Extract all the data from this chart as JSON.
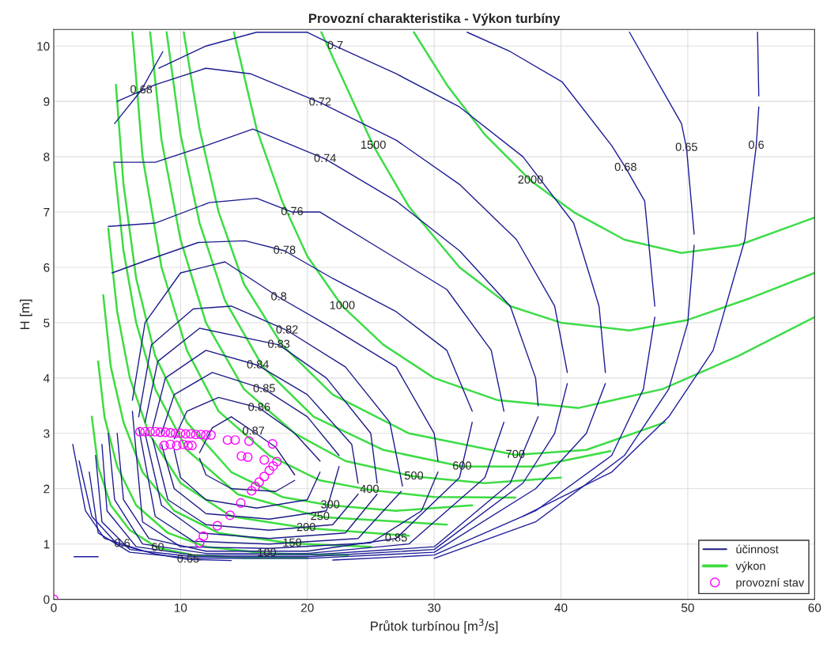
{
  "chart_data": {
    "type": "line",
    "title": "Provozní charakteristika - Výkon turbíny",
    "xlabel": "Průtok turbínou [m$^{3}$/s]",
    "ylabel": "H [m]",
    "xlim": [
      0,
      60
    ],
    "xticks": [
      0,
      10,
      20,
      30,
      40,
      50,
      60
    ],
    "ylim": [
      0,
      10.3
    ],
    "yticks": [
      0,
      1,
      2,
      3,
      4,
      5,
      6,
      7,
      8,
      9,
      10
    ],
    "grid": true,
    "legend": "bottom right",
    "series": [
      {
        "name": "účinnost",
        "color": "#1c1c80",
        "x": [
          11.5,
          12.5,
          14,
          15.75,
          17.5,
          19
        ],
        "values": [
          2.65,
          3.1,
          3.3,
          3.03,
          2.75,
          2.25
        ]
      },
      {
        "color": "#1c1c81",
        "x": [
          11.5,
          12,
          14,
          17.5,
          19
        ],
        "values": [
          2.55,
          2.25,
          2.0,
          1.95,
          2.15
        ]
      },
      {
        "color": "#1c1c82",
        "x": [
          9.5,
          10.5,
          13,
          16.2,
          19,
          21
        ],
        "values": [
          2.9,
          3.4,
          3.65,
          3.46,
          3.0,
          2.5
        ]
      },
      {
        "color": "#1c1c83",
        "x": [
          9.5,
          10,
          12,
          16,
          20,
          21
        ],
        "values": [
          2.7,
          2.2,
          1.8,
          1.65,
          1.8,
          2.3
        ]
      },
      {
        "color": "#1c1c84",
        "x": [
          8.5,
          9.5,
          12.5,
          16.6,
          20,
          22.5
        ],
        "values": [
          3.0,
          3.7,
          4.1,
          3.8,
          3.3,
          2.6
        ]
      },
      {
        "color": "#1c1c85",
        "x": [
          8.5,
          9.5,
          12,
          17,
          21.5,
          22.5
        ],
        "values": [
          2.8,
          2.0,
          1.55,
          1.45,
          1.6,
          2.4
        ]
      },
      {
        "color": "#1c1c86",
        "x": [
          7.8,
          8.8,
          12,
          16.1,
          20,
          23.5,
          24
        ],
        "values": [
          3.1,
          4.0,
          4.5,
          4.23,
          3.7,
          2.8,
          2.1
        ]
      },
      {
        "color": "#1c1c87",
        "x": [
          7.8,
          9,
          12,
          17,
          22,
          24
        ],
        "values": [
          2.9,
          1.8,
          1.35,
          1.25,
          1.35,
          1.9
        ]
      },
      {
        "color": "#1c1c88",
        "x": [
          7.2,
          8.2,
          11.5,
          17.75,
          21.5,
          25,
          25.5
        ],
        "values": [
          3.2,
          4.3,
          4.9,
          4.6,
          4.0,
          3.0,
          2.1
        ]
      },
      {
        "color": "#1c1c89",
        "x": [
          7.2,
          8.5,
          11.5,
          17,
          23,
          25.5
        ],
        "values": [
          3.0,
          1.7,
          1.2,
          1.1,
          1.2,
          1.9
        ]
      },
      {
        "color": "#1c1c8a",
        "x": [
          6.7,
          7.7,
          11,
          14,
          18.4,
          23,
          26.5,
          27.5
        ],
        "values": [
          3.3,
          4.6,
          5.25,
          5.3,
          4.86,
          4.2,
          3.2,
          2.05
        ]
      },
      {
        "color": "#1c1c8b",
        "x": [
          6.7,
          8,
          11,
          17,
          24,
          27.4
        ],
        "values": [
          3.1,
          1.5,
          1.05,
          1.0,
          1.1,
          1.95
        ]
      },
      {
        "color": "#1c1c8c",
        "x": [
          6.2,
          7.2,
          10,
          13.5,
          17.75,
          22,
          27,
          30,
          30.3
        ],
        "values": [
          3.6,
          5.0,
          5.9,
          6.1,
          5.46,
          4.9,
          4.2,
          3.0,
          2.5
        ]
      },
      {
        "color": "#1c1c8d",
        "x": [
          6.2,
          7,
          10,
          17,
          25,
          29,
          30.3
        ],
        "values": [
          3.4,
          1.4,
          0.95,
          0.92,
          1.02,
          1.6,
          2.3
        ]
      },
      {
        "color": "#1c1c8e",
        "x": [
          4.6,
          7,
          11.4,
          15.1,
          18.2,
          22,
          27,
          31,
          33
        ],
        "values": [
          5.9,
          6.1,
          6.45,
          6.48,
          6.3,
          5.8,
          5.2,
          4.5,
          3.4
        ]
      },
      {
        "color": "#1c1c8f",
        "x": [
          5,
          5.5,
          7.5,
          12,
          20,
          27,
          32,
          33
        ],
        "values": [
          3.0,
          1.8,
          1.1,
          0.87,
          0.87,
          1.1,
          2.2,
          3.2
        ]
      },
      {
        "color": "#1c1c90",
        "x": [
          4.3,
          8,
          12.25,
          16,
          18.8,
          21,
          26,
          31,
          34.5,
          35.5
        ],
        "values": [
          6.74,
          6.8,
          7.17,
          7.25,
          7.0,
          7.0,
          6.3,
          5.6,
          4.5,
          3.4
        ]
      },
      {
        "color": "#1c1c91",
        "x": [
          4.3,
          4.8,
          7,
          12,
          20,
          28,
          34,
          35.5
        ],
        "values": [
          3.0,
          1.8,
          1.0,
          0.83,
          0.83,
          1.0,
          2.2,
          3.2
        ]
      },
      {
        "color": "#1c1c92",
        "x": [
          4.8,
          8,
          12,
          15.7,
          21.4,
          27,
          32,
          36,
          38,
          38.2
        ],
        "values": [
          7.9,
          7.9,
          8.2,
          8.5,
          7.96,
          7.2,
          6.3,
          5.3,
          4.0,
          3.5
        ]
      },
      {
        "color": "#1c1c93",
        "x": [
          3.8,
          4.2,
          6.5,
          11,
          20,
          30,
          36,
          38.2
        ],
        "values": [
          2.8,
          1.6,
          0.95,
          0.8,
          0.8,
          0.95,
          2.1,
          3.3
        ]
      },
      {
        "color": "#1c1c94",
        "x": [
          5,
          8,
          12,
          15.5,
          21,
          27,
          32,
          36.5,
          39.5,
          40.5
        ],
        "values": [
          9.0,
          9.3,
          9.6,
          9.5,
          8.98,
          8.3,
          7.5,
          6.5,
          5.3,
          4.1
        ]
      },
      {
        "color": "#1c1c95",
        "x": [
          3.3,
          3.8,
          6,
          11,
          20,
          30,
          37,
          39.5,
          40.5
        ],
        "values": [
          2.6,
          1.4,
          0.9,
          0.77,
          0.77,
          0.9,
          2.1,
          3.0,
          3.9
        ]
      },
      {
        "color": "#1c1c96",
        "x": [
          8.3,
          12,
          16,
          20,
          22.2,
          27,
          32,
          37,
          41,
          43,
          43.5
        ],
        "values": [
          9.6,
          10.0,
          10.25,
          10.25,
          10.0,
          9.5,
          8.9,
          8.0,
          6.8,
          5.3,
          4.1
        ]
      },
      {
        "color": "#1c1c97",
        "x": [
          2.8,
          3.5,
          6,
          11,
          20,
          30,
          38,
          42,
          43.5
        ],
        "values": [
          2.3,
          1.2,
          0.85,
          0.74,
          0.74,
          0.85,
          2.0,
          3.0,
          3.9
        ]
      },
      {
        "color": "#1c1c98",
        "x": [
          4.8,
          6.9,
          8.6
        ],
        "values": [
          8.6,
          9.2,
          9.9
        ]
      },
      {
        "color": "#1c1c99",
        "x": [
          32.6,
          36,
          40.1,
          44,
          45.1,
          46.6,
          47.4
        ],
        "values": [
          10.25,
          9.9,
          9.35,
          8.2,
          7.8,
          7.2,
          5.3
        ]
      },
      {
        "color": "#1c1c9a",
        "x": [
          22,
          30,
          38,
          44,
          46.5,
          47.4
        ],
        "values": [
          0.71,
          0.8,
          1.6,
          2.6,
          3.8,
          5.1
        ]
      },
      {
        "color": "#1c1c9b",
        "x": [
          45.4,
          49.5,
          49.9,
          50.5
        ],
        "values": [
          10.25,
          8.6,
          8.16,
          6.6
        ]
      },
      {
        "color": "#1c1c9c",
        "x": [
          30,
          38,
          45,
          48.5,
          50,
          50.5
        ],
        "values": [
          0.74,
          1.4,
          2.6,
          3.8,
          5.0,
          6.4
        ]
      },
      {
        "color": "#1c1c9d",
        "x": [
          2,
          3,
          5,
          8,
          10.6,
          14
        ],
        "values": [
          2.5,
          1.5,
          1.0,
          0.82,
          0.72,
          0.7
        ]
      },
      {
        "color": "#1c1c9e",
        "x": [
          55.5,
          55.6
        ],
        "values": [
          10.25,
          9.1
        ]
      },
      {
        "color": "#1c1c9f",
        "x": [
          37,
          44,
          48.5,
          52,
          54.5,
          55.4,
          55.6
        ],
        "values": [
          1.5,
          2.3,
          3.3,
          4.5,
          6.5,
          8.2,
          8.9
        ]
      },
      {
        "color": "#1c1ca0",
        "x": [
          1.5,
          2.5,
          4,
          5.4,
          7
        ],
        "values": [
          2.8,
          1.6,
          1.1,
          1.0,
          0.88
        ]
      },
      {
        "color": "#1c1ca1",
        "x": [
          1.6,
          3.5
        ],
        "values": [
          0.77,
          0.77
        ]
      },
      {
        "name": "výkon",
        "color": "#3ddc3d",
        "x": [
          3.0,
          3.5,
          4.5,
          6,
          8.2,
          11,
          15,
          20
        ],
        "values": [
          3.3,
          2.4,
          1.7,
          1.25,
          0.93,
          0.8,
          0.75,
          0.75
        ]
      },
      {
        "color": "#3ddc3e",
        "x": [
          3.5,
          4,
          5,
          6.5,
          9,
          12,
          16.8,
          23.2
        ],
        "values": [
          4.3,
          3.3,
          2.4,
          1.7,
          1.2,
          0.95,
          0.83,
          0.8
        ]
      },
      {
        "color": "#3ddc3f",
        "x": [
          3.9,
          4.5,
          5.5,
          7,
          9.5,
          13,
          18.8,
          25
        ],
        "values": [
          5.5,
          4.2,
          3.2,
          2.3,
          1.6,
          1.2,
          1.01,
          0.95
        ]
      },
      {
        "color": "#3ddc40",
        "x": [
          4.3,
          5,
          6,
          7.5,
          10,
          14,
          19.9,
          28
        ],
        "values": [
          6.7,
          5.2,
          4.0,
          3.0,
          2.1,
          1.5,
          1.29,
          1.15
        ]
      },
      {
        "color": "#3ddc41",
        "x": [
          4.75,
          5.5,
          6.5,
          8,
          10.5,
          14.5,
          21,
          31
        ],
        "values": [
          7.9,
          6.3,
          5.0,
          3.8,
          2.7,
          1.9,
          1.49,
          1.35
        ]
      },
      {
        "color": "#3ddc42",
        "x": [
          4.9,
          5.5,
          6.5,
          8,
          10.5,
          14,
          18,
          21.8,
          27,
          33
        ],
        "values": [
          9.3,
          7.5,
          5.8,
          4.4,
          3.2,
          2.3,
          1.85,
          1.7,
          1.6,
          1.7
        ]
      },
      {
        "color": "#3ddc43",
        "x": [
          6.2,
          7,
          8.5,
          10.5,
          13,
          17,
          21,
          24.9,
          30,
          36.4
        ],
        "values": [
          10.25,
          8.0,
          6.0,
          4.5,
          3.4,
          2.6,
          2.15,
          1.98,
          1.85,
          1.84
        ]
      },
      {
        "color": "#3ddc44",
        "x": [
          7.6,
          8.5,
          10,
          12,
          15,
          19,
          23,
          28.4,
          34,
          40
        ],
        "values": [
          10.25,
          8.3,
          6.5,
          5.0,
          3.8,
          3.0,
          2.5,
          2.22,
          2.1,
          2.2
        ]
      },
      {
        "color": "#3ddc45",
        "x": [
          8.9,
          10,
          11.5,
          13.5,
          16.5,
          20.5,
          26,
          32.2,
          38,
          43.9
        ],
        "values": [
          10.25,
          8.4,
          6.8,
          5.4,
          4.2,
          3.3,
          2.7,
          2.4,
          2.4,
          2.68
        ]
      },
      {
        "color": "#3ddc46",
        "x": [
          10.25,
          11.5,
          13,
          15,
          18,
          22,
          28,
          36.4,
          42,
          48.2
        ],
        "values": [
          10.25,
          8.5,
          7.0,
          5.7,
          4.6,
          3.7,
          3.0,
          2.61,
          2.7,
          3.2
        ]
      },
      {
        "color": "#3ddc47",
        "x": [
          14.2,
          16,
          18,
          20,
          22.75,
          26,
          30,
          35,
          41.4,
          48,
          54,
          60
        ],
        "values": [
          10.25,
          8.5,
          7.2,
          6.2,
          5.3,
          4.6,
          4.0,
          3.6,
          3.46,
          3.8,
          4.4,
          5.1
        ]
      },
      {
        "color": "#3ddc48",
        "x": [
          21.1,
          23,
          25.2,
          28,
          32,
          36,
          40,
          45.4,
          50,
          55,
          60
        ],
        "values": [
          10.25,
          9.3,
          8.2,
          7.1,
          6.0,
          5.3,
          5.0,
          4.86,
          5.05,
          5.45,
          5.9
        ]
      },
      {
        "color": "#3ddc49",
        "x": [
          28.4,
          31,
          34,
          37.6,
          41,
          45,
          49.5,
          54,
          60
        ],
        "values": [
          10.25,
          9.3,
          8.4,
          7.57,
          7.0,
          6.5,
          6.26,
          6.4,
          6.9
        ]
      },
      {
        "name": "provozní stav",
        "type": "scatter",
        "marker": "circle",
        "color": "#ff00ff",
        "x": [
          0,
          6.8,
          7.2,
          7.6,
          8.0,
          8.4,
          8.8,
          9.2,
          9.6,
          10.0,
          10.4,
          10.8,
          11.2,
          11.6,
          12.0,
          12.4,
          8.7,
          9.2,
          9.7,
          10.2,
          10.6,
          10.9,
          13.7,
          14.3,
          15.4,
          17.25,
          14.8,
          15.3,
          16.6,
          17.6,
          17.3,
          17.0,
          16.6,
          16.2,
          15.9,
          15.6,
          14.75,
          13.9,
          12.9,
          11.8,
          11.5
        ],
        "values": [
          0,
          3.03,
          3.03,
          3.03,
          3.03,
          3.02,
          3.02,
          3.01,
          3.0,
          3.0,
          2.99,
          2.99,
          2.98,
          2.98,
          2.97,
          2.97,
          2.78,
          2.8,
          2.78,
          2.8,
          2.78,
          2.78,
          2.88,
          2.88,
          2.86,
          2.81,
          2.59,
          2.57,
          2.52,
          2.49,
          2.41,
          2.33,
          2.22,
          2.12,
          2.04,
          1.96,
          1.74,
          1.52,
          1.33,
          1.14,
          1.02
        ]
      }
    ],
    "annotations": [
      {
        "text": "0.87",
        "x": 15.75,
        "y": 3.03
      },
      {
        "text": "0.86",
        "x": 16.2,
        "y": 3.46
      },
      {
        "text": "0.85",
        "x": 16.6,
        "y": 3.8
      },
      {
        "text": "0.84",
        "x": 16.1,
        "y": 4.23
      },
      {
        "text": "0.83",
        "x": 17.75,
        "y": 4.6
      },
      {
        "text": "0.82",
        "x": 18.4,
        "y": 4.86
      },
      {
        "text": "0.8",
        "x": 17.75,
        "y": 5.46
      },
      {
        "text": "0.78",
        "x": 18.2,
        "y": 6.3
      },
      {
        "text": "0.76",
        "x": 18.8,
        "y": 7.0
      },
      {
        "text": "0.74",
        "x": 21.4,
        "y": 7.96
      },
      {
        "text": "0.72",
        "x": 21.0,
        "y": 8.98
      },
      {
        "text": "0.7",
        "x": 22.2,
        "y": 10.0
      },
      {
        "text": "0.68",
        "x": 6.9,
        "y": 9.2
      },
      {
        "text": "0.68",
        "x": 45.1,
        "y": 7.8
      },
      {
        "text": "0.65",
        "x": 49.9,
        "y": 8.16
      },
      {
        "text": "0.6",
        "x": 55.4,
        "y": 8.2
      },
      {
        "text": "0.6",
        "x": 5.4,
        "y": 1.0
      },
      {
        "text": "0.65",
        "x": 10.6,
        "y": 0.72
      },
      {
        "text": "0.85",
        "x": 27.0,
        "y": 1.1
      },
      {
        "text": "60",
        "x": 8.2,
        "y": 0.93
      },
      {
        "text": "100",
        "x": 16.8,
        "y": 0.83
      },
      {
        "text": "150",
        "x": 18.8,
        "y": 1.01
      },
      {
        "text": "200",
        "x": 19.9,
        "y": 1.29
      },
      {
        "text": "250",
        "x": 21.0,
        "y": 1.49
      },
      {
        "text": "300",
        "x": 21.8,
        "y": 1.7
      },
      {
        "text": "400",
        "x": 24.9,
        "y": 1.98
      },
      {
        "text": "500",
        "x": 28.4,
        "y": 2.22
      },
      {
        "text": "600",
        "x": 32.2,
        "y": 2.4
      },
      {
        "text": "700",
        "x": 36.4,
        "y": 2.61
      },
      {
        "text": "1000",
        "x": 22.75,
        "y": 5.3
      },
      {
        "text": "1500",
        "x": 25.2,
        "y": 8.2
      },
      {
        "text": "2000",
        "x": 37.6,
        "y": 7.57
      }
    ]
  }
}
